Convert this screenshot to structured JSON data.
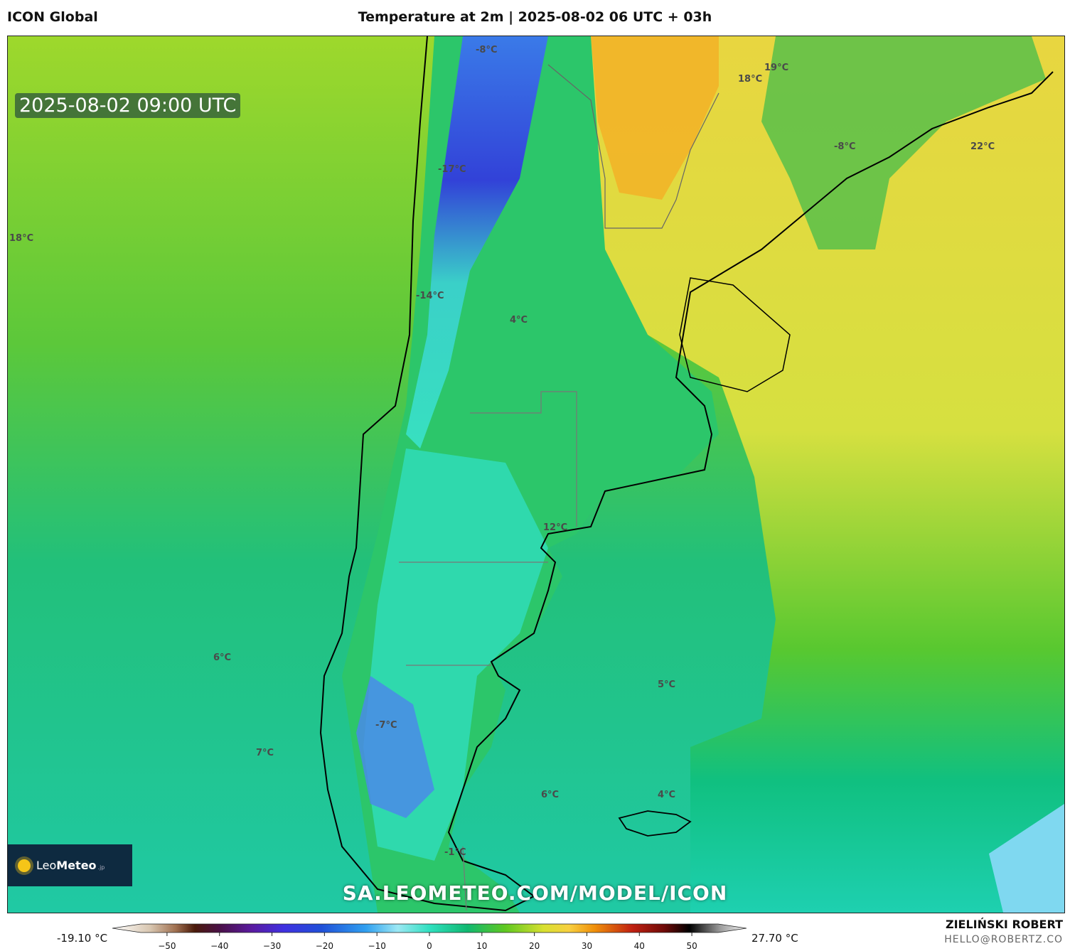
{
  "header": {
    "model": "ICON Global",
    "title": "Temperature at 2m | 2025-08-02 06 UTC + 03h"
  },
  "map": {
    "valid_time": "2025-08-02 09:00 UTC",
    "url_watermark": "SA.LEOMETEO.COM/MODEL/ICON",
    "region": "southern South America",
    "colors": {
      "cold": "#3a3ae0",
      "cool": "#2ee0b8",
      "mild": "#22b860",
      "warm": "#8fd820",
      "hot": "#f2b020",
      "ocean_warm": "#c8e638"
    },
    "temperature_labels": [
      {
        "text": "-8°C"
      },
      {
        "text": "19°C"
      },
      {
        "text": "18°C"
      },
      {
        "text": "-8°C"
      },
      {
        "text": "22°C"
      },
      {
        "text": "-17°C"
      },
      {
        "text": "18°C"
      },
      {
        "text": "-14°C"
      },
      {
        "text": "4°C"
      },
      {
        "text": "12°C"
      },
      {
        "text": "6°C"
      },
      {
        "text": "5°C"
      },
      {
        "text": "-7°C"
      },
      {
        "text": "7°C"
      },
      {
        "text": "6°C"
      },
      {
        "text": "4°C"
      },
      {
        "text": "-1°C"
      }
    ]
  },
  "logo": {
    "brand_light": "Leo",
    "brand_bold": "Meteo",
    "suffix": ".jp"
  },
  "colorbar": {
    "min_label": "-19.10 °C",
    "max_label": "27.70 °C",
    "ticks": [
      "−50",
      "−40",
      "−30",
      "−20",
      "−10",
      "0",
      "10",
      "20",
      "30",
      "40",
      "50"
    ],
    "tick_values": [
      -50,
      -40,
      -30,
      -20,
      -10,
      0,
      10,
      20,
      30,
      40,
      50
    ],
    "range": [
      -55,
      55
    ]
  },
  "credits": {
    "author": "ZIELIŃSKI ROBERT",
    "email": "HELLO@ROBERTZ.CO"
  }
}
